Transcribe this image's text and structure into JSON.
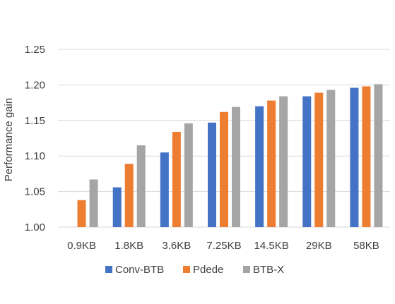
{
  "chart_data": {
    "type": "bar",
    "title": "",
    "xlabel": "",
    "ylabel": "Performance gain",
    "ylim": [
      1.0,
      1.25
    ],
    "yticks": [
      "1.00",
      "1.05",
      "1.10",
      "1.15",
      "1.20",
      "1.25"
    ],
    "grid": true,
    "legend_position": "bottom",
    "categories": [
      "0.9KB",
      "1.8KB",
      "3.6KB",
      "7.25KB",
      "14.5KB",
      "29KB",
      "58KB"
    ],
    "series": [
      {
        "name": "Conv-BTB",
        "color": "#4472c4",
        "values": [
          1.0,
          1.056,
          1.105,
          1.147,
          1.17,
          1.184,
          1.196
        ]
      },
      {
        "name": "Pdede",
        "color": "#ed7d31",
        "values": [
          1.038,
          1.089,
          1.134,
          1.162,
          1.178,
          1.189,
          1.198
        ]
      },
      {
        "name": "BTB-X",
        "color": "#a5a5a5",
        "values": [
          1.067,
          1.115,
          1.146,
          1.169,
          1.184,
          1.193,
          1.201
        ]
      }
    ]
  }
}
